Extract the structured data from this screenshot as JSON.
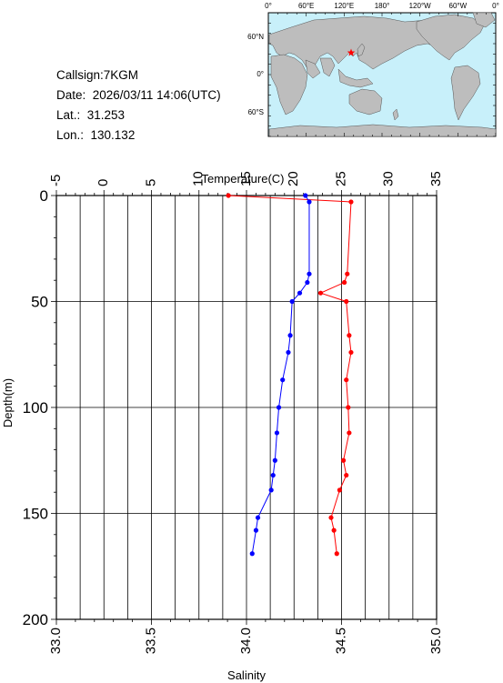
{
  "station": {
    "callsign": "Callsign:7KGM",
    "date": "Date:  2026/03/11 14:06(UTC)",
    "lat": "Lat.:  31.253",
    "lon": "Lon.:  130.132"
  },
  "map": {
    "top_labels": [
      "0°",
      "60°E",
      "120°E",
      "180°",
      "120°W",
      "60°W",
      "0°"
    ],
    "lat_labels": [
      "60°N",
      "0°",
      "60°S"
    ],
    "colors": {
      "ocean": "#c8f0fa",
      "land": "#bdbdbd",
      "marker": "#ff0000"
    }
  },
  "chart_data": {
    "type": "line",
    "title": "",
    "ylabel": "Depth(m)",
    "y_range": [
      0,
      200
    ],
    "y_inverted": true,
    "y_ticks": [
      0,
      50,
      100,
      150,
      200
    ],
    "top_axis": {
      "label": "Temperature(C)",
      "range": [
        -5,
        35
      ],
      "ticks": [
        -5,
        0,
        5,
        10,
        15,
        20,
        25,
        30,
        35
      ]
    },
    "bottom_axis": {
      "label": "Salinity",
      "range": [
        33.0,
        35.0
      ],
      "ticks": [
        "33.0",
        "33.5",
        "34.0",
        "34.5",
        "35.0"
      ]
    },
    "grid": true,
    "series": [
      {
        "axis": "temperature",
        "color": "#ff0000",
        "points": [
          {
            "x": 13.1,
            "y": 0
          },
          {
            "x": 26.0,
            "y": 3
          },
          {
            "x": 25.6,
            "y": 37
          },
          {
            "x": 25.3,
            "y": 41
          },
          {
            "x": 22.8,
            "y": 46
          },
          {
            "x": 25.5,
            "y": 50
          },
          {
            "x": 25.8,
            "y": 66
          },
          {
            "x": 26.0,
            "y": 74
          },
          {
            "x": 25.5,
            "y": 87
          },
          {
            "x": 25.7,
            "y": 100
          },
          {
            "x": 25.8,
            "y": 112
          },
          {
            "x": 25.2,
            "y": 125
          },
          {
            "x": 25.5,
            "y": 132
          },
          {
            "x": 24.8,
            "y": 139
          },
          {
            "x": 23.9,
            "y": 152
          },
          {
            "x": 24.2,
            "y": 158
          },
          {
            "x": 24.5,
            "y": 169
          }
        ]
      },
      {
        "axis": "salinity",
        "color": "#0000ff",
        "points": [
          {
            "x": 34.31,
            "y": 0
          },
          {
            "x": 34.33,
            "y": 3
          },
          {
            "x": 34.33,
            "y": 37
          },
          {
            "x": 34.32,
            "y": 41
          },
          {
            "x": 34.28,
            "y": 46
          },
          {
            "x": 34.24,
            "y": 50
          },
          {
            "x": 34.23,
            "y": 66
          },
          {
            "x": 34.22,
            "y": 74
          },
          {
            "x": 34.19,
            "y": 87
          },
          {
            "x": 34.17,
            "y": 100
          },
          {
            "x": 34.16,
            "y": 112
          },
          {
            "x": 34.15,
            "y": 125
          },
          {
            "x": 34.14,
            "y": 132
          },
          {
            "x": 34.13,
            "y": 139
          },
          {
            "x": 34.06,
            "y": 152
          },
          {
            "x": 34.05,
            "y": 158
          },
          {
            "x": 34.03,
            "y": 169
          }
        ]
      }
    ]
  }
}
